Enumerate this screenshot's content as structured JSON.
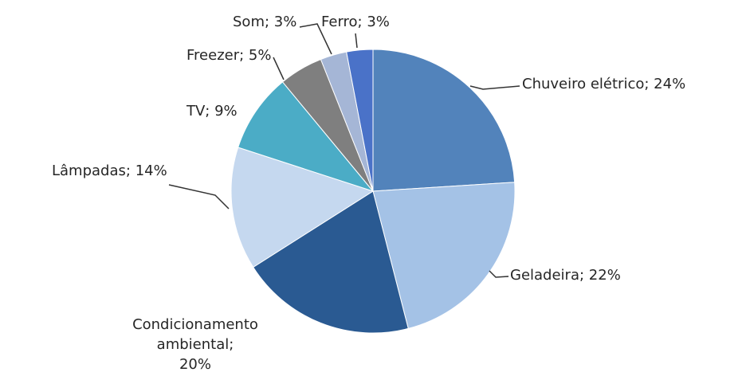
{
  "chart_data": {
    "type": "pie",
    "categories": [
      "Chuveiro elétrico;",
      "Geladeira;",
      "Condicionamento ambiental;",
      "Lâmpadas;",
      "TV;",
      "Freezer;",
      "Som;",
      "Ferro;"
    ],
    "values": [
      24,
      22,
      20,
      14,
      9,
      5,
      3,
      3
    ],
    "value_labels": [
      "24%",
      "22%",
      "20%",
      "14%",
      "9%",
      "5%",
      "3%",
      "3%"
    ],
    "colors": [
      "#5283bb",
      "#a4c2e6",
      "#2a5a92",
      "#c5d8ef",
      "#4bacc6",
      "#7f7f7f",
      "#a5b6d6",
      "#4a72c8"
    ]
  }
}
